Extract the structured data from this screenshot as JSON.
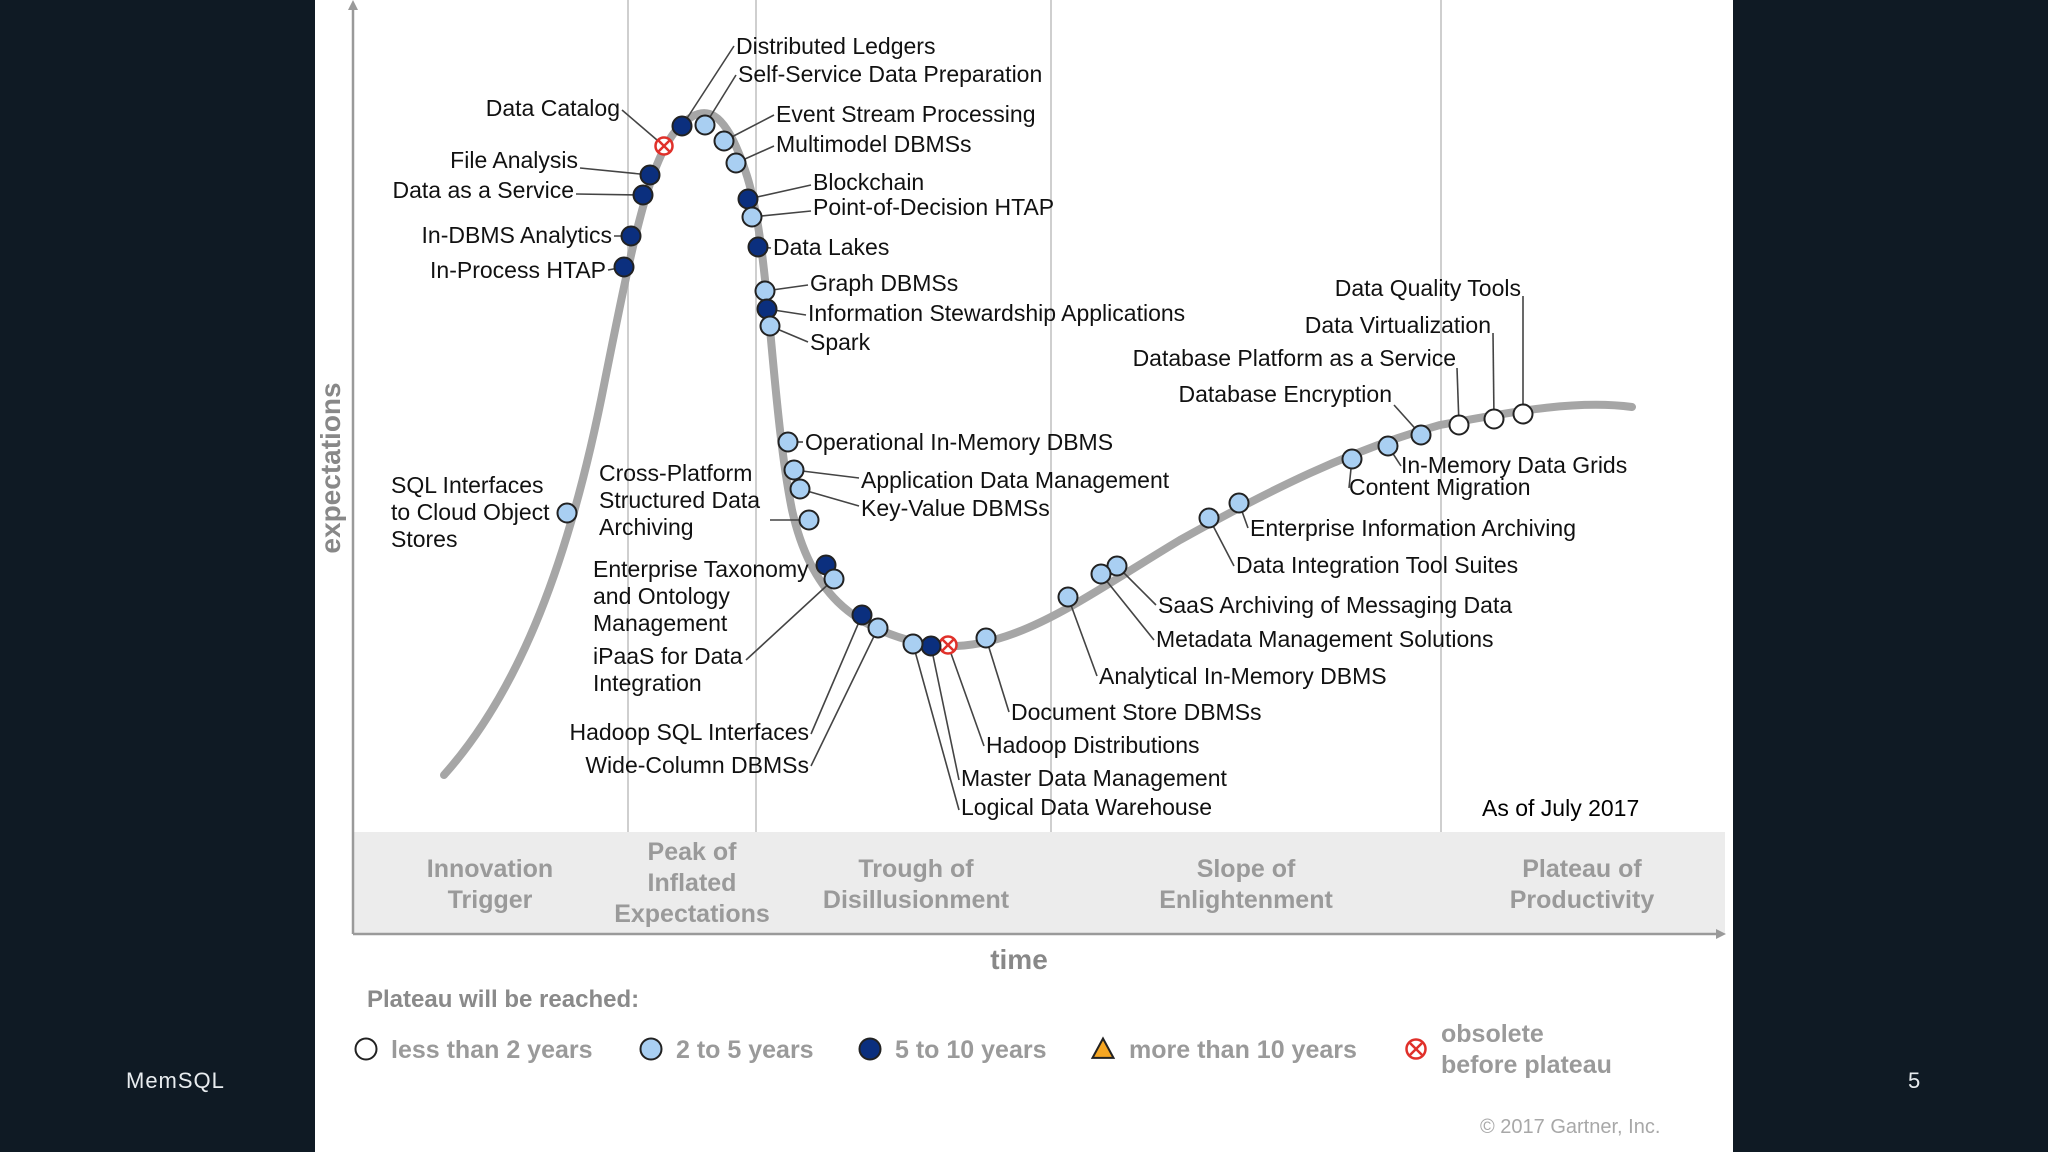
{
  "footer": {
    "brand": "MemSQL",
    "page_number": "5"
  },
  "chart": {
    "axis_y_label": "expectations",
    "axis_x_label": "time",
    "as_of": "As of July 2017",
    "copyright": "© 2017 Gartner, Inc."
  },
  "phases": [
    {
      "lines": [
        "Innovation",
        "Trigger"
      ]
    },
    {
      "lines": [
        "Peak of",
        "Inflated",
        "Expectations"
      ]
    },
    {
      "lines": [
        "Trough of",
        "Disillusionment"
      ]
    },
    {
      "lines": [
        "Slope of",
        "Enlightenment"
      ]
    },
    {
      "lines": [
        "Plateau of",
        "Productivity"
      ]
    }
  ],
  "legend": {
    "title": "Plateau will be reached:",
    "items": [
      {
        "key": "lt2",
        "lines": [
          "less than 2 years"
        ]
      },
      {
        "key": "y2to5",
        "lines": [
          "2 to 5 years"
        ]
      },
      {
        "key": "y5to10",
        "lines": [
          "5 to 10 years"
        ]
      },
      {
        "key": "gt10",
        "lines": [
          "more than 10 years"
        ]
      },
      {
        "key": "obsolete",
        "lines": [
          "obsolete",
          "before plateau"
        ]
      }
    ]
  },
  "colors": {
    "lt2": "#ffffff",
    "y2to5": "#a9cff2",
    "y5to10": "#0b2f7e",
    "gt10": "#f5a623",
    "obsolete_stroke": "#e0302a",
    "curve": "#a6a6a6",
    "band": "#ececec"
  },
  "technologies": [
    {
      "lines": [
        "Distributed Ledgers"
      ],
      "cat": "y5to10"
    },
    {
      "lines": [
        "Self-Service Data Preparation"
      ],
      "cat": "y2to5"
    },
    {
      "lines": [
        "Data Catalog"
      ],
      "cat": "obsolete"
    },
    {
      "lines": [
        "Event Stream Processing"
      ],
      "cat": "y2to5"
    },
    {
      "lines": [
        "Multimodel DBMSs"
      ],
      "cat": "y2to5"
    },
    {
      "lines": [
        "File Analysis"
      ],
      "cat": "y5to10"
    },
    {
      "lines": [
        "Data as a Service"
      ],
      "cat": "y5to10"
    },
    {
      "lines": [
        "Blockchain"
      ],
      "cat": "y5to10"
    },
    {
      "lines": [
        "Point-of-Decision HTAP"
      ],
      "cat": "y2to5"
    },
    {
      "lines": [
        "In-DBMS Analytics"
      ],
      "cat": "y5to10"
    },
    {
      "lines": [
        "Data Lakes"
      ],
      "cat": "y5to10"
    },
    {
      "lines": [
        "In-Process HTAP"
      ],
      "cat": "y5to10"
    },
    {
      "lines": [
        "Graph DBMSs"
      ],
      "cat": "y2to5"
    },
    {
      "lines": [
        "Information Stewardship Applications"
      ],
      "cat": "y5to10"
    },
    {
      "lines": [
        "Spark"
      ],
      "cat": "y2to5"
    },
    {
      "lines": [
        "Data Quality Tools"
      ],
      "cat": "lt2"
    },
    {
      "lines": [
        "Data Virtualization"
      ],
      "cat": "lt2"
    },
    {
      "lines": [
        "Database Platform as a Service"
      ],
      "cat": "lt2"
    },
    {
      "lines": [
        "Database Encryption"
      ],
      "cat": "y2to5"
    },
    {
      "lines": [
        "Operational In-Memory DBMS"
      ],
      "cat": "y2to5"
    },
    {
      "lines": [
        "In-Memory Data Grids"
      ],
      "cat": "y2to5"
    },
    {
      "lines": [
        "Content Migration"
      ],
      "cat": "y2to5"
    },
    {
      "lines": [
        "Application Data Management"
      ],
      "cat": "y2to5"
    },
    {
      "lines": [
        "Key-Value DBMSs"
      ],
      "cat": "y2to5"
    },
    {
      "lines": [
        "SQL Interfaces",
        "to Cloud Object",
        "Stores"
      ],
      "cat": "y2to5"
    },
    {
      "lines": [
        "Cross-Platform",
        "Structured Data",
        "Archiving"
      ],
      "cat": "y2to5"
    },
    {
      "lines": [
        "Enterprise Information Archiving"
      ],
      "cat": "y2to5"
    },
    {
      "lines": [
        "Data Integration Tool Suites"
      ],
      "cat": "y2to5"
    },
    {
      "lines": [
        "Enterprise Taxonomy",
        "and Ontology",
        "Management"
      ],
      "cat": "y5to10"
    },
    {
      "lines": [
        "iPaaS for Data",
        "Integration"
      ],
      "cat": "y2to5"
    },
    {
      "lines": [
        "SaaS Archiving of Messaging Data"
      ],
      "cat": "y2to5"
    },
    {
      "lines": [
        "Metadata Management Solutions"
      ],
      "cat": "y2to5"
    },
    {
      "lines": [
        "Analytical In-Memory DBMS"
      ],
      "cat": "y2to5"
    },
    {
      "lines": [
        "Document Store DBMSs"
      ],
      "cat": "y2to5"
    },
    {
      "lines": [
        "Hadoop SQL Interfaces"
      ],
      "cat": "y5to10"
    },
    {
      "lines": [
        "Wide-Column DBMSs"
      ],
      "cat": "y2to5"
    },
    {
      "lines": [
        "Hadoop Distributions"
      ],
      "cat": "obsolete"
    },
    {
      "lines": [
        "Master Data Management"
      ],
      "cat": "y5to10"
    },
    {
      "lines": [
        "Logical Data Warehouse"
      ],
      "cat": "y2to5"
    }
  ]
}
